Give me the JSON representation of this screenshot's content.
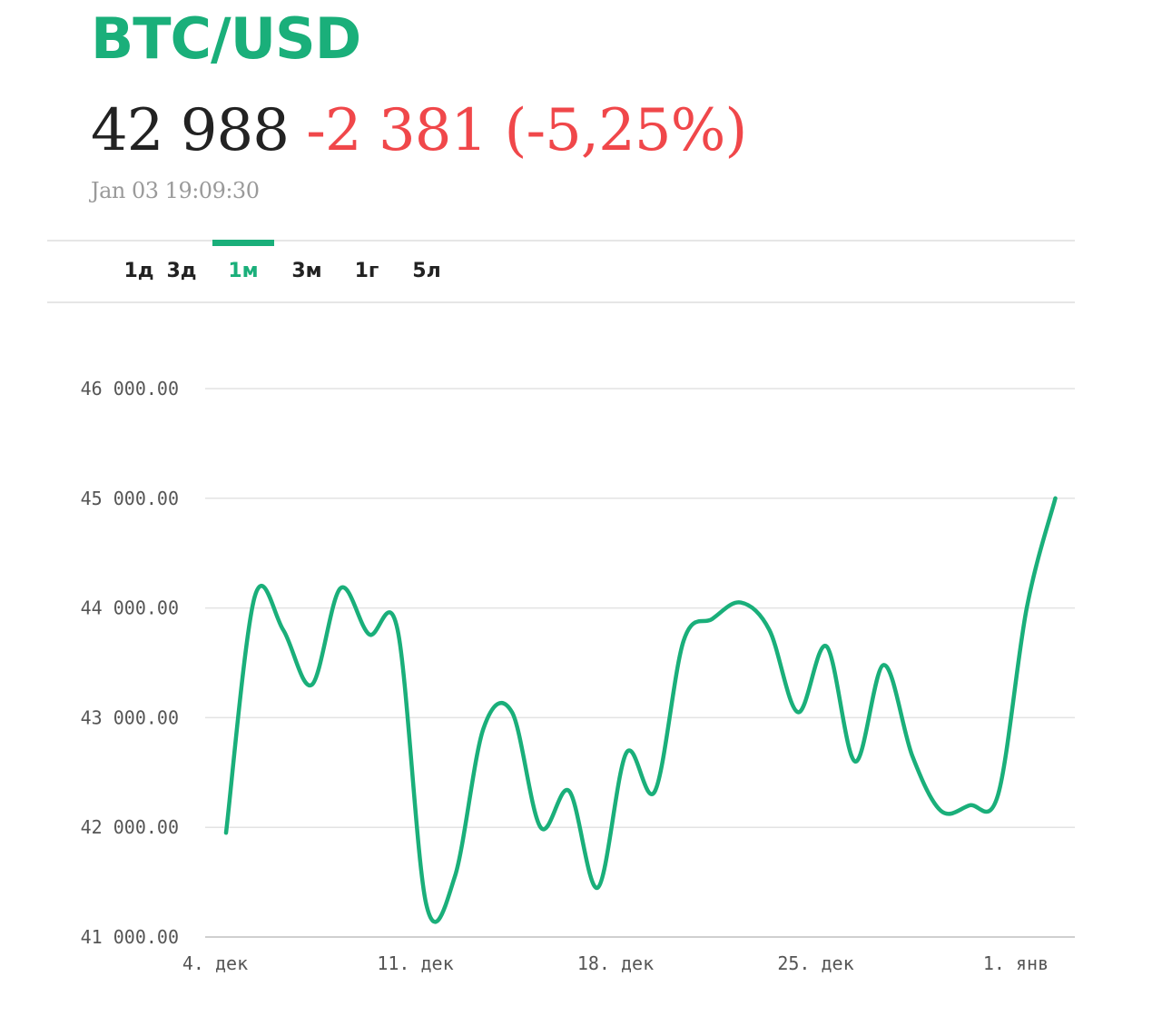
{
  "header": {
    "pair": "BTC/USD",
    "price": "42 988",
    "change": "-2 381 (-5,25%)",
    "timestamp": "Jan 03 19:09:30"
  },
  "colors": {
    "accent": "#1aaf7a",
    "negative": "#f0474a",
    "text": "#222222",
    "muted": "#9a9a9a",
    "grid": "#e3e3e3"
  },
  "tabs": [
    {
      "label": "1д",
      "active": false
    },
    {
      "label": "3д",
      "active": false
    },
    {
      "label": "1м",
      "active": true
    },
    {
      "label": "3м",
      "active": false
    },
    {
      "label": "1г",
      "active": false
    },
    {
      "label": "5л",
      "active": false
    }
  ],
  "chart_data": {
    "type": "line",
    "title": "",
    "xlabel": "",
    "ylabel": "",
    "grid": true,
    "ylim": [
      41000,
      46000
    ],
    "xlim": [
      "2023-12-04",
      "2024-01-02"
    ],
    "y_ticks": [
      41000,
      42000,
      43000,
      44000,
      45000,
      46000
    ],
    "y_tick_labels": [
      "41 000.00",
      "42 000.00",
      "43 000.00",
      "44 000.00",
      "45 000.00",
      "46 000.00"
    ],
    "x_ticks": [
      "2023-12-04",
      "2023-12-11",
      "2023-12-18",
      "2023-12-25",
      "2024-01-01"
    ],
    "x_tick_labels": [
      "4. дек",
      "11. дек",
      "18. дек",
      "25. дек",
      "1. янв"
    ],
    "series": [
      {
        "name": "",
        "color": "#1aaf7a",
        "x": [
          "2023-12-04",
          "2023-12-05",
          "2023-12-06",
          "2023-12-07",
          "2023-12-08",
          "2023-12-09",
          "2023-12-10",
          "2023-12-11",
          "2023-12-12",
          "2023-12-13",
          "2023-12-14",
          "2023-12-15",
          "2023-12-16",
          "2023-12-17",
          "2023-12-18",
          "2023-12-19",
          "2023-12-20",
          "2023-12-21",
          "2023-12-22",
          "2023-12-23",
          "2023-12-24",
          "2023-12-25",
          "2023-12-26",
          "2023-12-27",
          "2023-12-28",
          "2023-12-29",
          "2023-12-30",
          "2023-12-31",
          "2024-01-01",
          "2024-01-02"
        ],
        "values": [
          41950,
          44100,
          43800,
          43300,
          44180,
          43760,
          43800,
          41300,
          41550,
          42900,
          43050,
          42000,
          42330,
          41450,
          42680,
          42330,
          43700,
          43900,
          44050,
          43800,
          43050,
          43650,
          42600,
          43480,
          42650,
          42150,
          42200,
          42300,
          44000,
          45000
        ]
      }
    ]
  }
}
